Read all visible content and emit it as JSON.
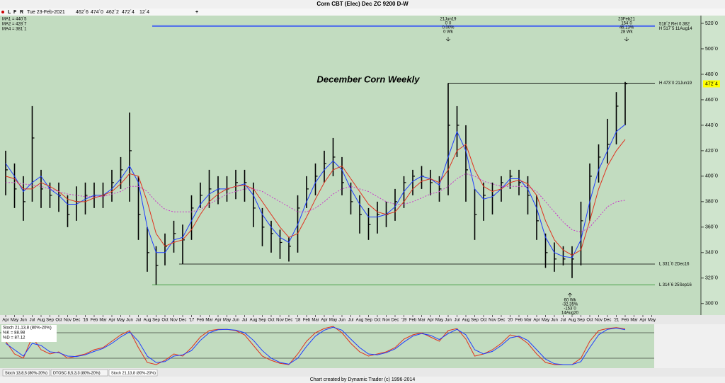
{
  "window": {
    "title": "Corn CBT (Elec) Dec ZC 9200 D-W",
    "toolbar": [
      "L",
      "F",
      "R",
      "+"
    ],
    "info": {
      "date": "Tue 23-Feb-2021",
      "open": "462´6",
      "high": "474´0",
      "low": "462´2",
      "close": "472´4",
      "change": "12´4"
    }
  },
  "chart_data": [
    {
      "type": "ohlc",
      "title": "December Corn Weekly",
      "categories": [
        "Apr",
        "May",
        "Jun",
        "Jul",
        "Aug",
        "Sep",
        "Oct",
        "Nov",
        "Dec",
        "'16",
        "Feb",
        "Mar",
        "Apr",
        "May",
        "Jun",
        "Jul",
        "Aug",
        "Sep",
        "Oct",
        "Nov",
        "Dec",
        "'17",
        "Feb",
        "Mar",
        "Apr",
        "May",
        "Jun",
        "Jul",
        "Aug",
        "Sep",
        "Oct",
        "Nov",
        "Dec",
        "'18",
        "Feb",
        "Mar",
        "Apr",
        "May",
        "Jun",
        "Jul",
        "Aug",
        "Sep",
        "Oct",
        "Nov",
        "Dec",
        "'19",
        "Feb",
        "Mar",
        "Apr",
        "May",
        "Jun",
        "Jul",
        "Aug",
        "Sep",
        "Oct",
        "Nov",
        "Dec",
        "'20",
        "Feb",
        "Mar",
        "Apr",
        "May",
        "Jun",
        "Jul",
        "Aug",
        "Sep",
        "Oct",
        "Nov",
        "Dec",
        "'21",
        "Feb",
        "Mar",
        "Apr",
        "May"
      ],
      "high": [
        420,
        410,
        400,
        455,
        405,
        395,
        395,
        385,
        392,
        395,
        395,
        395,
        405,
        415,
        450,
        400,
        360,
        345,
        355,
        365,
        362,
        385,
        395,
        405,
        400,
        400,
        405,
        405,
        395,
        375,
        365,
        358,
        352,
        385,
        400,
        410,
        420,
        430,
        415,
        395,
        385,
        375,
        380,
        380,
        390,
        400,
        405,
        408,
        405,
        400,
        473,
        455,
        440,
        390,
        395,
        395,
        400,
        405,
        405,
        400,
        385,
        355,
        348,
        345,
        345,
        380,
        410,
        425,
        445,
        466,
        474,
        null,
        null,
        null
      ],
      "low": [
        385,
        375,
        365,
        380,
        375,
        375,
        372,
        360,
        365,
        370,
        375,
        375,
        380,
        390,
        380,
        350,
        325,
        314.75,
        330,
        340,
        331,
        350,
        375,
        375,
        378,
        380,
        382,
        380,
        360,
        345,
        340,
        335,
        333,
        340,
        375,
        385,
        395,
        400,
        385,
        370,
        355,
        350,
        355,
        360,
        365,
        375,
        385,
        390,
        385,
        380,
        385,
        415,
        380,
        350,
        365,
        370,
        380,
        390,
        385,
        370,
        350,
        328,
        325,
        330,
        320,
        330,
        365,
        395,
        410,
        425,
        440,
        null,
        null,
        null
      ],
      "close": [
        405,
        390,
        380,
        430,
        390,
        385,
        385,
        370,
        380,
        385,
        385,
        385,
        395,
        405,
        420,
        370,
        340,
        330,
        345,
        355,
        350,
        375,
        385,
        390,
        390,
        390,
        395,
        395,
        375,
        360,
        355,
        348,
        345,
        375,
        390,
        400,
        410,
        415,
        395,
        380,
        370,
        362,
        370,
        370,
        380,
        395,
        400,
        400,
        395,
        390,
        440,
        440,
        405,
        370,
        385,
        385,
        395,
        400,
        395,
        385,
        365,
        340,
        335,
        335,
        335,
        365,
        400,
        415,
        425,
        455,
        472.5,
        null,
        null,
        null
      ],
      "bar_color": "#000000",
      "series": [
        {
          "name": "MA1 = 440´5",
          "color": "#1e3cff",
          "values": [
            410,
            400,
            388,
            395,
            400,
            390,
            385,
            378,
            378,
            382,
            385,
            385,
            390,
            398,
            408,
            395,
            360,
            340,
            340,
            350,
            352,
            365,
            378,
            386,
            390,
            390,
            392,
            394,
            385,
            370,
            360,
            352,
            348,
            362,
            380,
            395,
            405,
            412,
            405,
            390,
            378,
            368,
            368,
            370,
            376,
            388,
            396,
            400,
            398,
            393,
            415,
            435,
            420,
            390,
            382,
            384,
            390,
            398,
            398,
            390,
            375,
            352,
            340,
            337,
            336,
            350,
            380,
            405,
            420,
            435,
            440.625,
            null,
            null,
            null
          ]
        },
        {
          "name": "MA2 = 428´7",
          "color": "#e0321e",
          "values": [
            400,
            398,
            390,
            390,
            395,
            392,
            388,
            382,
            380,
            380,
            383,
            385,
            388,
            394,
            402,
            400,
            380,
            355,
            345,
            348,
            350,
            358,
            370,
            380,
            386,
            390,
            392,
            393,
            390,
            380,
            370,
            360,
            352,
            355,
            368,
            382,
            395,
            405,
            408,
            398,
            388,
            378,
            372,
            370,
            372,
            380,
            390,
            396,
            398,
            395,
            405,
            420,
            425,
            405,
            392,
            388,
            390,
            395,
            397,
            394,
            385,
            365,
            350,
            342,
            338,
            342,
            365,
            390,
            408,
            420,
            428.875,
            null,
            null,
            null
          ]
        },
        {
          "name": "MA4 = 381´1",
          "color": "#c83cc8",
          "dashed": true,
          "values": [
            395,
            395,
            394,
            393,
            392,
            390,
            388,
            386,
            385,
            384,
            384,
            384,
            386,
            388,
            392,
            392,
            388,
            380,
            374,
            372,
            372,
            372,
            374,
            378,
            382,
            386,
            388,
            390,
            390,
            388,
            384,
            380,
            376,
            372,
            372,
            375,
            380,
            386,
            390,
            392,
            390,
            388,
            384,
            380,
            378,
            378,
            380,
            383,
            386,
            388,
            392,
            398,
            402,
            400,
            396,
            394,
            392,
            392,
            392,
            392,
            388,
            380,
            372,
            364,
            358,
            356,
            360,
            368,
            376,
            380,
            381.125,
            null,
            null,
            null
          ]
        }
      ],
      "ylim": [
        291,
        530
      ],
      "yticks": [
        {
          "value": 300,
          "label": "300´0"
        },
        {
          "value": 320,
          "label": "320´0"
        },
        {
          "value": 340,
          "label": "340´0"
        },
        {
          "value": 360,
          "label": "360´0"
        },
        {
          "value": 380,
          "label": "380´0"
        },
        {
          "value": 400,
          "label": "400´0"
        },
        {
          "value": 420,
          "label": "420´0"
        },
        {
          "value": 440,
          "label": "440´0"
        },
        {
          "value": 460,
          "label": "460´0"
        },
        {
          "value": 480,
          "label": "480´0"
        },
        {
          "value": 500,
          "label": "500´0"
        },
        {
          "value": 520,
          "label": "520´0"
        }
      ],
      "levels": [
        {
          "value": 518.25,
          "label": "518´2 Ret 0.382",
          "color": "#1e3cff"
        },
        {
          "value": 517.625,
          "label": "H 517´5 11Aug14",
          "color": "#1e3cff"
        },
        {
          "value": 473,
          "label": "H 473´0 21Jun19",
          "color": "#000000"
        },
        {
          "value": 331,
          "label": "L 331´0 2Dec16",
          "color": "#000000"
        },
        {
          "value": 314.75,
          "label": "L 314´6 25Sep16",
          "color": "#1e8c1e"
        }
      ],
      "last_price": {
        "value": 472.5,
        "label": "472´4",
        "color": "#ffff00"
      },
      "notes_top_left": [
        "21Jun19",
        "0´0",
        "0.00%",
        "0 Wk"
      ],
      "notes_top_right": [
        "23Feb21",
        "154´0",
        "46.13%",
        "28 Wk"
      ],
      "notes_bottom": [
        "60 Wk",
        "-32.35%",
        "-153´0",
        "14Aug20"
      ]
    },
    {
      "type": "line",
      "legend": "Stoch 21,13,8 (80%-20%)",
      "series": [
        {
          "name": "%K = 88.98",
          "color": "#e0321e",
          "values": [
            60,
            30,
            20,
            70,
            40,
            30,
            35,
            20,
            25,
            30,
            40,
            45,
            60,
            75,
            85,
            45,
            10,
            5,
            15,
            30,
            25,
            45,
            70,
            85,
            88,
            88,
            85,
            75,
            50,
            25,
            15,
            8,
            5,
            30,
            60,
            80,
            90,
            95,
            80,
            55,
            35,
            25,
            30,
            35,
            45,
            65,
            75,
            80,
            70,
            60,
            85,
            90,
            65,
            25,
            30,
            40,
            55,
            75,
            70,
            55,
            30,
            10,
            5,
            5,
            5,
            20,
            60,
            85,
            90,
            92,
            88.98,
            null,
            null,
            null
          ]
        },
        {
          "name": "%D = 87.12",
          "color": "#1e3cff",
          "values": [
            55,
            40,
            25,
            55,
            50,
            35,
            33,
            25,
            24,
            28,
            36,
            43,
            55,
            70,
            82,
            60,
            25,
            10,
            12,
            25,
            28,
            38,
            62,
            80,
            87,
            88,
            86,
            80,
            62,
            38,
            20,
            10,
            6,
            20,
            48,
            72,
            86,
            93,
            86,
            65,
            45,
            30,
            28,
            33,
            42,
            58,
            72,
            78,
            74,
            64,
            78,
            88,
            75,
            40,
            30,
            36,
            50,
            68,
            72,
            62,
            40,
            18,
            7,
            5,
            5,
            12,
            45,
            75,
            88,
            91,
            87.12,
            null,
            null,
            null
          ]
        }
      ],
      "ylim": [
        0,
        100
      ],
      "ref_lines": [
        80,
        20
      ]
    }
  ],
  "tabs": [
    "Stoch 13,8,5 (80%-20%)",
    "DTOSC 8,5,3,3 (80%-20%)",
    "Stoch 21,13,8 (80%-20%)"
  ],
  "footer": "Chart created by Dynamic Trader  (c) 1996-2014"
}
